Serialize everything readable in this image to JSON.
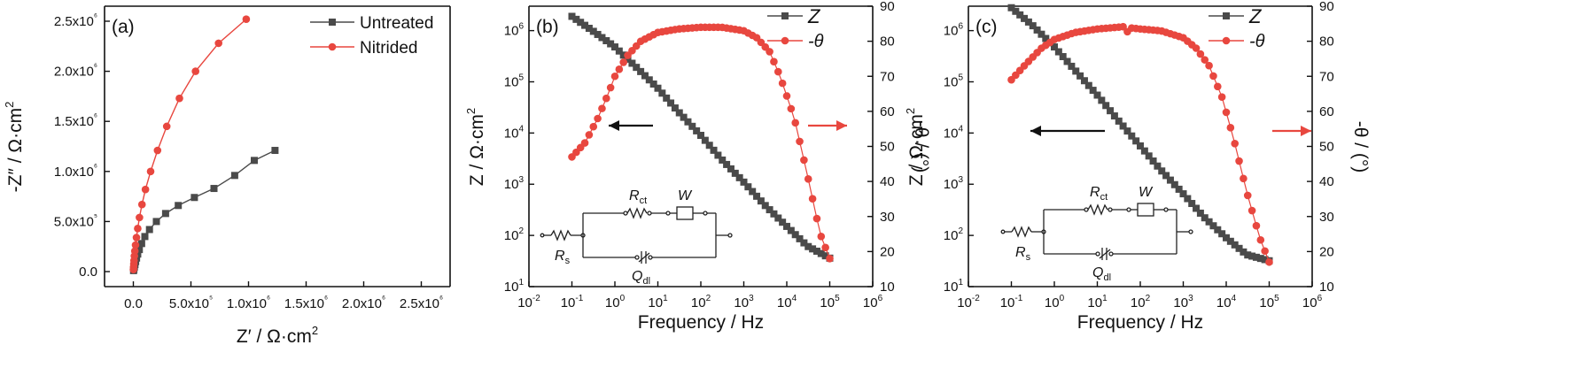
{
  "colors": {
    "untreated": "#4a4a4a",
    "nitrided": "#e8473f",
    "impedance": "#4a4a4a",
    "phase": "#e8473f",
    "arrow_left": "#111111",
    "arrow_right": "#e8473f"
  },
  "panel_a": {
    "label": "(a)",
    "xlabel": "Z′ / Ω·cm",
    "xlabel_sup": "2",
    "ylabel": "-Z″ / Ω·cm",
    "ylabel_sup": "2"
  },
  "panel_b": {
    "label": "(b)",
    "xlabel": "Frequency / Hz",
    "ylabel": "Z / Ω·cm",
    "ylabel_sup": "2",
    "ylabel_right": "-θ / (°)",
    "legend_z": "Z",
    "legend_theta": "-θ"
  },
  "panel_c": {
    "label": "(c)",
    "xlabel": "Frequency / Hz",
    "ylabel": "Z / Ω·cm",
    "ylabel_sup": "2",
    "ylabel_right": "-θ / (°)",
    "legend_z": "Z",
    "legend_theta": "-θ"
  },
  "circuit": {
    "rs": "R",
    "rs_sub": "s",
    "rct": "R",
    "rct_sub": "ct",
    "w": "W",
    "qdl": "Q",
    "qdl_sub": "dl"
  },
  "chart_data": [
    {
      "type": "scatter",
      "panel": "a",
      "xlim": [
        -250000,
        2750000
      ],
      "ylim": [
        -150000,
        2650000
      ],
      "x_ticks": [
        {
          "v": 0,
          "label": "0.0"
        },
        {
          "v": 500000,
          "label": "5.0x10⁵"
        },
        {
          "v": 1000000,
          "label": "1.0x10⁶"
        },
        {
          "v": 1500000,
          "label": "1.5x10⁶"
        },
        {
          "v": 2000000,
          "label": "2.0x10⁶"
        },
        {
          "v": 2500000,
          "label": "2.5x10⁶"
        }
      ],
      "y_ticks": [
        {
          "v": 0,
          "label": "0.0"
        },
        {
          "v": 500000,
          "label": "5.0x10⁵"
        },
        {
          "v": 1000000,
          "label": "1.0x10⁶"
        },
        {
          "v": 1500000,
          "label": "1.5x10⁶"
        },
        {
          "v": 2000000,
          "label": "2.0x10⁶"
        },
        {
          "v": 2500000,
          "label": "2.5x10⁶"
        }
      ],
      "legend_position": "top-right",
      "series": [
        {
          "name": "Untreated",
          "marker": "square",
          "color": "#4a4a4a",
          "x": [
            2000,
            5000,
            9000,
            14000,
            20000,
            28000,
            38000,
            52000,
            72000,
            100000,
            140000,
            200000,
            280000,
            390000,
            530000,
            700000,
            880000,
            1050000,
            1230000
          ],
          "y": [
            10000,
            25000,
            45000,
            70000,
            100000,
            135000,
            175000,
            220000,
            280000,
            350000,
            420000,
            500000,
            580000,
            660000,
            740000,
            830000,
            960000,
            1110000,
            1210000
          ]
        },
        {
          "name": "Nitrided",
          "marker": "circle",
          "color": "#e8473f",
          "x": [
            1000,
            2500,
            4000,
            6000,
            9000,
            13000,
            19000,
            27000,
            38000,
            53000,
            75000,
            105000,
            150000,
            210000,
            290000,
            400000,
            540000,
            740000,
            980000
          ],
          "y": [
            20000,
            45000,
            75000,
            110000,
            155000,
            205000,
            265000,
            340000,
            430000,
            540000,
            670000,
            820000,
            1000000,
            1210000,
            1450000,
            1730000,
            2000000,
            2280000,
            2520000
          ]
        }
      ]
    },
    {
      "type": "line",
      "panel": "b",
      "xscale": "log",
      "xlim": [
        0.01,
        1000000
      ],
      "ylim_left": [
        10,
        3000000
      ],
      "ylim_right": [
        10,
        90
      ],
      "x_ticks": [
        {
          "v": 0.01,
          "m": "10",
          "e": "-2"
        },
        {
          "v": 0.1,
          "m": "10",
          "e": "-1"
        },
        {
          "v": 1,
          "m": "10",
          "e": "0"
        },
        {
          "v": 10,
          "m": "10",
          "e": "1"
        },
        {
          "v": 100,
          "m": "10",
          "e": "2"
        },
        {
          "v": 1000,
          "m": "10",
          "e": "3"
        },
        {
          "v": 10000,
          "m": "10",
          "e": "4"
        },
        {
          "v": 100000,
          "m": "10",
          "e": "5"
        },
        {
          "v": 1000000,
          "m": "10",
          "e": "6"
        }
      ],
      "y_left_ticks": [
        {
          "v": 10,
          "m": "10",
          "e": "1"
        },
        {
          "v": 100,
          "m": "10",
          "e": "2"
        },
        {
          "v": 1000,
          "m": "10",
          "e": "3"
        },
        {
          "v": 10000,
          "m": "10",
          "e": "4"
        },
        {
          "v": 100000,
          "m": "10",
          "e": "5"
        },
        {
          "v": 1000000,
          "m": "10",
          "e": "6"
        }
      ],
      "y_right_ticks": [
        10,
        20,
        30,
        40,
        50,
        60,
        70,
        80,
        90
      ],
      "legend_position": "top-right",
      "series": [
        {
          "name": "Z",
          "axis": "left",
          "marker": "square",
          "color": "#4a4a4a",
          "points": [
            [
              0.1,
              1900000
            ],
            [
              0.3,
              1000000
            ],
            [
              1,
              480000
            ],
            [
              3,
              200000
            ],
            [
              10,
              75000
            ],
            [
              30,
              26000
            ],
            [
              100,
              9000
            ],
            [
              300,
              3100
            ],
            [
              1000,
              1100
            ],
            [
              3000,
              400
            ],
            [
              10000,
              150
            ],
            [
              30000,
              62
            ],
            [
              100000,
              36
            ]
          ]
        },
        {
          "name": "-θ",
          "axis": "right",
          "marker": "circle",
          "color": "#e8473f",
          "points": [
            [
              0.1,
              47
            ],
            [
              0.2,
              51
            ],
            [
              0.4,
              58
            ],
            [
              0.7,
              65
            ],
            [
              1,
              70
            ],
            [
              2,
              76
            ],
            [
              4,
              80
            ],
            [
              10,
              82.5
            ],
            [
              30,
              83.5
            ],
            [
              100,
              84
            ],
            [
              300,
              84
            ],
            [
              1000,
              83
            ],
            [
              2000,
              81
            ],
            [
              4000,
              77
            ],
            [
              7000,
              70
            ],
            [
              15000,
              58
            ],
            [
              30000,
              42
            ],
            [
              60000,
              25
            ],
            [
              100000,
              18
            ]
          ]
        }
      ]
    },
    {
      "type": "line",
      "panel": "c",
      "xscale": "log",
      "xlim": [
        0.01,
        1000000
      ],
      "ylim_left": [
        10,
        3000000
      ],
      "ylim_right": [
        10,
        90
      ],
      "x_ticks": [
        {
          "v": 0.01,
          "m": "10",
          "e": "-2"
        },
        {
          "v": 0.1,
          "m": "10",
          "e": "-1"
        },
        {
          "v": 1,
          "m": "10",
          "e": "0"
        },
        {
          "v": 10,
          "m": "10",
          "e": "1"
        },
        {
          "v": 100,
          "m": "10",
          "e": "2"
        },
        {
          "v": 1000,
          "m": "10",
          "e": "3"
        },
        {
          "v": 10000,
          "m": "10",
          "e": "4"
        },
        {
          "v": 100000,
          "m": "10",
          "e": "5"
        },
        {
          "v": 1000000,
          "m": "10",
          "e": "6"
        }
      ],
      "y_left_ticks": [
        {
          "v": 10,
          "m": "10",
          "e": "1"
        },
        {
          "v": 100,
          "m": "10",
          "e": "2"
        },
        {
          "v": 1000,
          "m": "10",
          "e": "3"
        },
        {
          "v": 10000,
          "m": "10",
          "e": "4"
        },
        {
          "v": 100000,
          "m": "10",
          "e": "5"
        },
        {
          "v": 1000000,
          "m": "10",
          "e": "6"
        }
      ],
      "y_right_ticks": [
        10,
        20,
        30,
        40,
        50,
        60,
        70,
        80,
        90
      ],
      "legend_position": "top-right",
      "series": [
        {
          "name": "Z",
          "axis": "left",
          "marker": "square",
          "color": "#4a4a4a",
          "points": [
            [
              0.1,
              2800000
            ],
            [
              0.3,
              1300000
            ],
            [
              1,
              480000
            ],
            [
              3,
              170000
            ],
            [
              10,
              55000
            ],
            [
              30,
              18000
            ],
            [
              100,
              5600
            ],
            [
              300,
              1900
            ],
            [
              1000,
              650
            ],
            [
              3000,
              230
            ],
            [
              10000,
              90
            ],
            [
              30000,
              42
            ],
            [
              100000,
              32
            ]
          ]
        },
        {
          "name": "-θ",
          "axis": "right",
          "marker": "circle",
          "color": "#e8473f",
          "points": [
            [
              0.1,
              69
            ],
            [
              0.2,
              73
            ],
            [
              0.5,
              78
            ],
            [
              1,
              80.5
            ],
            [
              3,
              82.5
            ],
            [
              10,
              83.5
            ],
            [
              30,
              84
            ],
            [
              45,
              84.2
            ],
            [
              50,
              82.7
            ],
            [
              60,
              83.8
            ],
            [
              100,
              83.5
            ],
            [
              300,
              83
            ],
            [
              1000,
              81
            ],
            [
              2000,
              78
            ],
            [
              4000,
              73
            ],
            [
              8000,
              64
            ],
            [
              15000,
              52
            ],
            [
              30000,
              37
            ],
            [
              60000,
              24
            ],
            [
              100000,
              17
            ]
          ]
        }
      ]
    }
  ]
}
